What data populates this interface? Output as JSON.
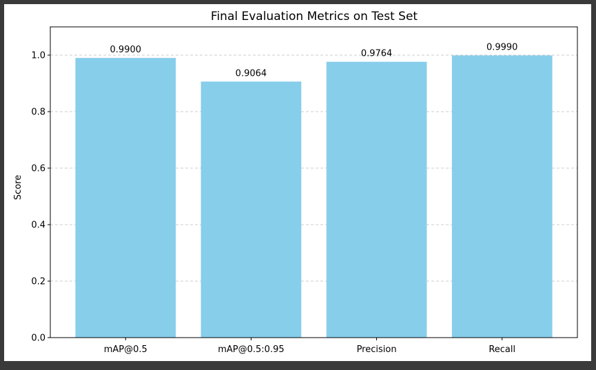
{
  "chart_data": {
    "type": "bar",
    "title": "Final Evaluation Metrics on Test Set",
    "xlabel": "",
    "ylabel": "Score",
    "categories": [
      "mAP@0.5",
      "mAP@0.5:0.95",
      "Precision",
      "Recall"
    ],
    "values": [
      0.99,
      0.9064,
      0.9764,
      0.999
    ],
    "value_labels": [
      "0.9900",
      "0.9064",
      "0.9764",
      "0.9990"
    ],
    "ylim": [
      0,
      1.1
    ],
    "yticks": [
      0.0,
      0.2,
      0.4,
      0.6,
      0.8,
      1.0
    ],
    "ytick_labels": [
      "0.0",
      "0.2",
      "0.4",
      "0.6",
      "0.8",
      "1.0"
    ],
    "grid": "y-dashed",
    "bar_color": "#87ceeb",
    "grid_color": "#cccccc"
  }
}
